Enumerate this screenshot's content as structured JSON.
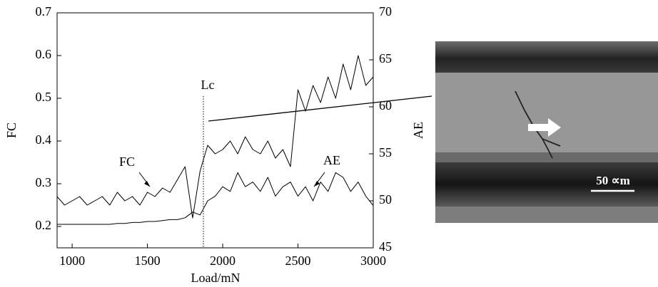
{
  "chart_data": {
    "type": "line",
    "x_label": "Load/mN",
    "y_label": "FC",
    "y2_label": "AE",
    "annotations": [
      "Lc",
      "FC",
      "AE"
    ],
    "x": [
      900,
      950,
      1000,
      1050,
      1100,
      1150,
      1200,
      1250,
      1300,
      1350,
      1400,
      1450,
      1500,
      1550,
      1600,
      1650,
      1700,
      1750,
      1800,
      1850,
      1900,
      1950,
      2000,
      2050,
      2100,
      2150,
      2200,
      2250,
      2300,
      2350,
      2400,
      2450,
      2500,
      2550,
      2600,
      2650,
      2700,
      2750,
      2800,
      2850,
      2900,
      2950,
      3000
    ],
    "series": [
      {
        "name": "FC",
        "color": "#000000",
        "axis": "y",
        "values": [
          0.27,
          0.25,
          0.26,
          0.27,
          0.25,
          0.26,
          0.27,
          0.25,
          0.28,
          0.26,
          0.27,
          0.25,
          0.28,
          0.27,
          0.29,
          0.28,
          0.31,
          0.34,
          0.22,
          0.33,
          0.39,
          0.37,
          0.38,
          0.4,
          0.37,
          0.41,
          0.38,
          0.37,
          0.4,
          0.36,
          0.38,
          0.34,
          0.52,
          0.47,
          0.53,
          0.49,
          0.55,
          0.5,
          0.58,
          0.52,
          0.6,
          0.53,
          0.55
        ]
      },
      {
        "name": "AE",
        "color": "#000000",
        "axis": "y2",
        "values": [
          47.5,
          47.5,
          47.5,
          47.5,
          47.5,
          47.5,
          47.5,
          47.5,
          47.6,
          47.6,
          47.7,
          47.7,
          47.8,
          47.8,
          47.9,
          48.0,
          48.0,
          48.2,
          48.8,
          48.5,
          50.0,
          50.5,
          51.5,
          51.0,
          53.0,
          51.5,
          52.0,
          51.0,
          52.5,
          50.5,
          51.5,
          52.0,
          50.5,
          51.5,
          50.0,
          52.0,
          51.0,
          53.0,
          52.5,
          51.0,
          52.0,
          50.5,
          49.5
        ]
      }
    ],
    "xlim": [
      900,
      3000
    ],
    "xticks": [
      1000,
      1500,
      2000,
      2500,
      3000
    ],
    "ylim": [
      0.15,
      0.7
    ],
    "yticks": [
      0.2,
      0.3,
      0.4,
      0.5,
      0.6,
      0.7
    ],
    "y2lim": [
      45,
      70
    ],
    "y2ticks": [
      45,
      50,
      55,
      60,
      65,
      70
    ]
  },
  "image": {
    "scale_label": "50 ∝m"
  }
}
